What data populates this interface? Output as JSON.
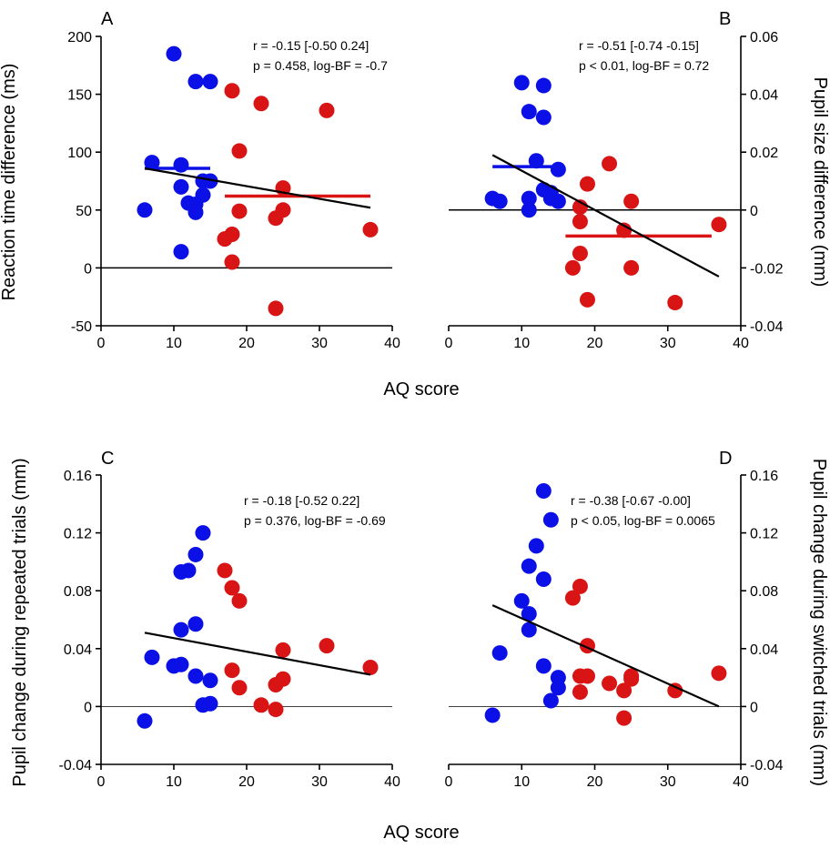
{
  "colors": {
    "group_low": "#0a10e6",
    "group_high": "#d81414",
    "line": "#000000",
    "zero_line": "#000000"
  },
  "chart_data": [
    {
      "type": "scatter",
      "panel": "A",
      "xlabel": "AQ score",
      "ylabel": "Reaction time difference (ms)",
      "yaxis_side": "left",
      "xlim": [
        0,
        40
      ],
      "ylim": [
        -50,
        200
      ],
      "xticks": [
        0,
        10,
        20,
        30,
        40
      ],
      "yticks": [
        -50,
        0,
        50,
        100,
        150,
        200
      ],
      "ytick_labels": [
        "-50",
        "0",
        "50",
        "100",
        "150",
        "200"
      ],
      "zero_line": 0,
      "zero_line_width": 1.5,
      "stats": [
        "r = -0.15 [-0.50 0.24]",
        "p = 0.458, log-BF = -0.7"
      ],
      "series": [
        {
          "group": "low",
          "points": [
            [
              6,
              50
            ],
            [
              7,
              91
            ],
            [
              10,
              185
            ],
            [
              11,
              89
            ],
            [
              11,
              70
            ],
            [
              11,
              14
            ],
            [
              12,
              56
            ],
            [
              13,
              161
            ],
            [
              13,
              48
            ],
            [
              13,
              55
            ],
            [
              14,
              63
            ],
            [
              14,
              75
            ],
            [
              15,
              161
            ],
            [
              15,
              75
            ]
          ]
        },
        {
          "group": "high",
          "points": [
            [
              17,
              25
            ],
            [
              18,
              29
            ],
            [
              18,
              5
            ],
            [
              18,
              153
            ],
            [
              19,
              101
            ],
            [
              19,
              49
            ],
            [
              22,
              142
            ],
            [
              24,
              43
            ],
            [
              24,
              -35
            ],
            [
              25,
              69
            ],
            [
              25,
              50
            ],
            [
              31,
              136
            ],
            [
              37,
              33
            ]
          ]
        }
      ],
      "means": [
        {
          "group": "low",
          "x": [
            6,
            15
          ],
          "y": 86
        },
        {
          "group": "high",
          "x": [
            17,
            37
          ],
          "y": 62
        }
      ],
      "regression": {
        "x": [
          6,
          37
        ],
        "y": [
          86,
          52
        ]
      }
    },
    {
      "type": "scatter",
      "panel": "B",
      "xlabel": "",
      "ylabel": "Pupil size difference (mm)",
      "yaxis_side": "right",
      "xlim": [
        0,
        40
      ],
      "ylim": [
        -0.04,
        0.06
      ],
      "xticks": [
        0,
        10,
        20,
        30,
        40
      ],
      "yticks": [
        -0.04,
        -0.02,
        0,
        0.02,
        0.04,
        0.06
      ],
      "ytick_labels": [
        "-0.04",
        "-0.02",
        "0",
        "0.02",
        "0.04",
        "0.06"
      ],
      "zero_line": 0,
      "zero_line_width": 1.5,
      "stats": [
        "r = -0.51 [-0.74 -0.15]",
        "p < 0.01, log-BF = 0.72"
      ],
      "series": [
        {
          "group": "low",
          "points": [
            [
              6,
              0.004
            ],
            [
              7,
              0.003
            ],
            [
              10,
              0.044
            ],
            [
              11,
              0.034
            ],
            [
              11,
              0.004
            ],
            [
              11,
              0.0
            ],
            [
              12,
              0.017
            ],
            [
              13,
              0.043
            ],
            [
              13,
              0.032
            ],
            [
              13,
              0.007
            ],
            [
              14,
              0.004
            ],
            [
              14,
              0.006
            ],
            [
              15,
              0.014
            ],
            [
              15,
              0.003
            ]
          ]
        },
        {
          "group": "high",
          "points": [
            [
              17,
              -0.02
            ],
            [
              18,
              0.001
            ],
            [
              18,
              -0.015
            ],
            [
              18,
              -0.004
            ],
            [
              19,
              0.009
            ],
            [
              19,
              -0.031
            ],
            [
              22,
              0.016
            ],
            [
              24,
              -0.007
            ],
            [
              25,
              0.003
            ],
            [
              25,
              -0.02
            ],
            [
              31,
              -0.032
            ],
            [
              37,
              -0.005
            ]
          ]
        }
      ],
      "means": [
        {
          "group": "low",
          "x": [
            6,
            15
          ],
          "y": 0.015
        },
        {
          "group": "high",
          "x": [
            16,
            36
          ],
          "y": -0.009
        }
      ],
      "regression": {
        "x": [
          6,
          37
        ],
        "y": [
          0.019,
          -0.023
        ]
      }
    },
    {
      "type": "scatter",
      "panel": "C",
      "xlabel": "AQ score",
      "ylabel": "Pupil change during repeated trials (mm)",
      "yaxis_side": "left",
      "xlim": [
        0,
        40
      ],
      "ylim": [
        -0.04,
        0.16
      ],
      "xticks": [
        0,
        10,
        20,
        30,
        40
      ],
      "yticks": [
        -0.04,
        0,
        0.04,
        0.08,
        0.12,
        0.16
      ],
      "ytick_labels": [
        "-0.04",
        "0",
        "0.04",
        "0.08",
        "0.12",
        "0.16"
      ],
      "zero_line": 0,
      "zero_line_width": 0.8,
      "stats": [
        "r = -0.18 [-0.52 0.22]",
        "p = 0.376, log-BF = -0.69"
      ],
      "series": [
        {
          "group": "low",
          "points": [
            [
              6,
              -0.01
            ],
            [
              7,
              0.034
            ],
            [
              10,
              0.028
            ],
            [
              11,
              0.029
            ],
            [
              11,
              0.053
            ],
            [
              11,
              0.093
            ],
            [
              12,
              0.094
            ],
            [
              13,
              0.105
            ],
            [
              13,
              0.057
            ],
            [
              13,
              0.021
            ],
            [
              14,
              0.12
            ],
            [
              14,
              0.001
            ],
            [
              15,
              0.018
            ],
            [
              15,
              0.002
            ]
          ]
        },
        {
          "group": "high",
          "points": [
            [
              17,
              0.094
            ],
            [
              18,
              0.082
            ],
            [
              18,
              0.025
            ],
            [
              19,
              0.073
            ],
            [
              19,
              0.013
            ],
            [
              22,
              0.001
            ],
            [
              24,
              0.015
            ],
            [
              24,
              -0.002
            ],
            [
              25,
              0.039
            ],
            [
              25,
              0.019
            ],
            [
              31,
              0.042
            ],
            [
              37,
              0.027
            ]
          ]
        }
      ],
      "means": [],
      "regression": {
        "x": [
          6,
          37
        ],
        "y": [
          0.051,
          0.022
        ]
      }
    },
    {
      "type": "scatter",
      "panel": "D",
      "xlabel": "",
      "ylabel": "Pupil change during switched trials (mm)",
      "yaxis_side": "right",
      "xlim": [
        0,
        40
      ],
      "ylim": [
        -0.04,
        0.16
      ],
      "xticks": [
        0,
        10,
        20,
        30,
        40
      ],
      "yticks": [
        -0.04,
        0,
        0.04,
        0.08,
        0.12,
        0.16
      ],
      "ytick_labels": [
        "-0.04",
        "0",
        "0.04",
        "0.08",
        "0.12",
        "0.16"
      ],
      "zero_line": 0,
      "zero_line_width": 0.8,
      "stats": [
        "r = -0.38 [-0.67 -0.00]",
        "p < 0.05, log-BF = 0.0065"
      ],
      "series": [
        {
          "group": "low",
          "points": [
            [
              6,
              -0.006
            ],
            [
              7,
              0.037
            ],
            [
              10,
              0.073
            ],
            [
              11,
              0.097
            ],
            [
              11,
              0.064
            ],
            [
              11,
              0.053
            ],
            [
              12,
              0.111
            ],
            [
              13,
              0.149
            ],
            [
              13,
              0.088
            ],
            [
              13,
              0.028
            ],
            [
              14,
              0.129
            ],
            [
              14,
              0.004
            ],
            [
              15,
              0.02
            ],
            [
              15,
              0.013
            ]
          ]
        },
        {
          "group": "high",
          "points": [
            [
              17,
              0.075
            ],
            [
              18,
              0.083
            ],
            [
              18,
              0.021
            ],
            [
              18,
              0.01
            ],
            [
              19,
              0.042
            ],
            [
              19,
              0.021
            ],
            [
              22,
              0.016
            ],
            [
              24,
              0.011
            ],
            [
              24,
              -0.008
            ],
            [
              25,
              0.021
            ],
            [
              25,
              0.019
            ],
            [
              31,
              0.011
            ],
            [
              37,
              0.023
            ]
          ]
        }
      ],
      "means": [],
      "regression": {
        "x": [
          6,
          37
        ],
        "y": [
          0.07,
          0.0
        ]
      }
    }
  ]
}
